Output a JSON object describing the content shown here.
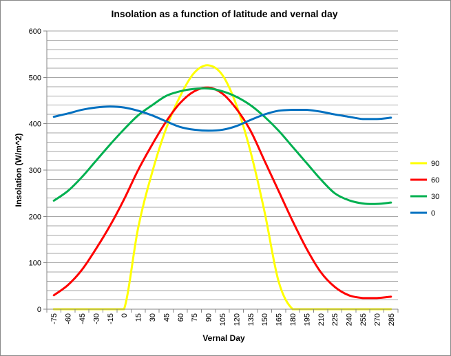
{
  "chart_data": {
    "type": "line",
    "title": "Insolation as a function of latitude and vernal day",
    "xlabel": "Vernal Day",
    "ylabel": "Insolation (W/m^2)",
    "ylim": [
      0,
      600
    ],
    "y_ticks": [
      0,
      100,
      200,
      300,
      400,
      500,
      600
    ],
    "y_minor_step": 20,
    "grid": true,
    "legend": "right",
    "x": [
      -75,
      -60,
      -45,
      -30,
      -15,
      0,
      15,
      30,
      45,
      60,
      75,
      90,
      105,
      120,
      135,
      150,
      165,
      180,
      195,
      210,
      225,
      240,
      255,
      270,
      285
    ],
    "series": [
      {
        "name": "90",
        "color": "#FFFF00",
        "values": [
          0,
          0,
          0,
          0,
          0,
          0,
          175,
          295,
          390,
          460,
          510,
          526,
          505,
          440,
          340,
          210,
          60,
          0,
          0,
          0,
          0,
          0,
          0,
          0,
          0
        ]
      },
      {
        "name": "60",
        "color": "#FF0000",
        "values": [
          30,
          52,
          85,
          130,
          180,
          237,
          300,
          355,
          405,
          445,
          470,
          478,
          465,
          432,
          385,
          320,
          255,
          190,
          130,
          80,
          48,
          30,
          24,
          24,
          27
        ]
      },
      {
        "name": "30",
        "color": "#00B050",
        "values": [
          234,
          255,
          285,
          320,
          355,
          388,
          418,
          440,
          460,
          470,
          475,
          476,
          470,
          458,
          440,
          415,
          385,
          350,
          315,
          280,
          250,
          235,
          228,
          227,
          230
        ]
      },
      {
        "name": "0",
        "color": "#0070C0",
        "values": [
          415,
          422,
          430,
          435,
          437,
          435,
          428,
          418,
          405,
          393,
          387,
          385,
          387,
          395,
          408,
          420,
          428,
          430,
          430,
          426,
          420,
          415,
          410,
          410,
          413
        ]
      }
    ]
  }
}
